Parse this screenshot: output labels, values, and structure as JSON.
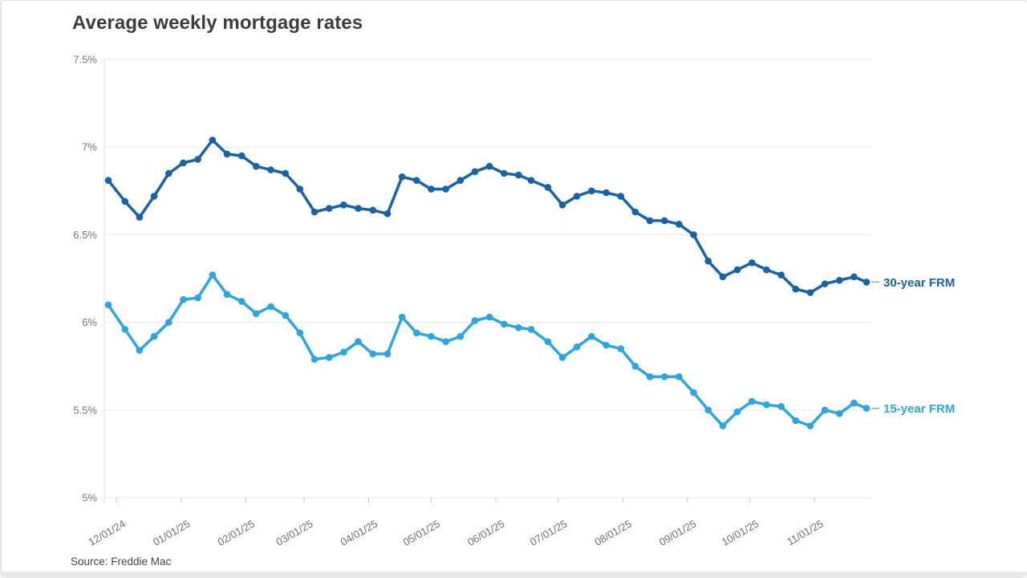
{
  "page": {
    "title": "Average weekly mortgage rates",
    "source": "Source: Freddie Mac"
  },
  "chart_data": {
    "type": "line",
    "title": "Average weekly mortgage rates",
    "source_label": "Source: Freddie Mac",
    "grid": "horizontal",
    "legend_position": "end-of-line-labels",
    "ylim": [
      5,
      7.5
    ],
    "y_ticks": [
      {
        "label": "7.5%",
        "value": 7.5
      },
      {
        "label": "7%",
        "value": 7.0
      },
      {
        "label": "6.5%",
        "value": 6.5
      },
      {
        "label": "6%",
        "value": 6.0
      },
      {
        "label": "5.5%",
        "value": 5.5
      },
      {
        "label": "5%",
        "value": 5.0
      }
    ],
    "x_tick_labels": [
      "12/01/24",
      "01/01/25",
      "02/01/25",
      "03/01/25",
      "04/01/25",
      "05/01/25",
      "06/01/25",
      "07/01/25",
      "08/01/25",
      "09/01/25",
      "10/01/25",
      "11/01/25"
    ],
    "x": [
      "11/27/24",
      "12/05/24",
      "12/12/24",
      "12/19/24",
      "12/26/24",
      "01/02/25",
      "01/09/25",
      "01/16/25",
      "01/23/25",
      "01/30/25",
      "02/06/25",
      "02/13/25",
      "02/20/25",
      "02/27/25",
      "03/06/25",
      "03/13/25",
      "03/20/25",
      "03/27/25",
      "04/03/25",
      "04/10/25",
      "04/17/25",
      "04/24/25",
      "05/01/25",
      "05/08/25",
      "05/15/25",
      "05/22/25",
      "05/29/25",
      "06/05/25",
      "06/12/25",
      "06/18/25",
      "06/26/25",
      "07/03/25",
      "07/10/25",
      "07/17/25",
      "07/24/25",
      "07/31/25",
      "08/07/25",
      "08/14/25",
      "08/21/25",
      "08/28/25",
      "09/04/25",
      "09/11/25",
      "09/18/25",
      "09/25/25",
      "10/02/25",
      "10/09/25",
      "10/16/25",
      "10/23/25",
      "10/30/25",
      "11/06/25",
      "11/13/25",
      "11/20/25",
      "11/26/25"
    ],
    "series": [
      {
        "name": "30-year FRM",
        "color": "#1763a6",
        "values": [
          6.81,
          6.69,
          6.6,
          6.72,
          6.85,
          6.91,
          6.93,
          7.04,
          6.96,
          6.95,
          6.89,
          6.87,
          6.85,
          6.76,
          6.63,
          6.65,
          6.67,
          6.65,
          6.64,
          6.62,
          6.83,
          6.81,
          6.76,
          6.76,
          6.81,
          6.86,
          6.89,
          6.85,
          6.84,
          6.81,
          6.77,
          6.67,
          6.72,
          6.75,
          6.74,
          6.72,
          6.63,
          6.58,
          6.58,
          6.56,
          6.5,
          6.35,
          6.26,
          6.3,
          6.34,
          6.3,
          6.27,
          6.19,
          6.17,
          6.22,
          6.24,
          6.26,
          6.23
        ]
      },
      {
        "name": "15-year FRM",
        "color": "#2ca6e0",
        "values": [
          6.1,
          5.96,
          5.84,
          5.92,
          6.0,
          6.13,
          6.14,
          6.27,
          6.16,
          6.12,
          6.05,
          6.09,
          6.04,
          5.94,
          5.79,
          5.8,
          5.83,
          5.89,
          5.82,
          5.82,
          6.03,
          5.94,
          5.92,
          5.89,
          5.92,
          6.01,
          6.03,
          5.99,
          5.97,
          5.96,
          5.89,
          5.8,
          5.86,
          5.92,
          5.87,
          5.85,
          5.75,
          5.69,
          5.69,
          5.69,
          5.6,
          5.5,
          5.41,
          5.49,
          5.55,
          5.53,
          5.52,
          5.44,
          5.41,
          5.5,
          5.48,
          5.54,
          5.51
        ]
      }
    ]
  }
}
